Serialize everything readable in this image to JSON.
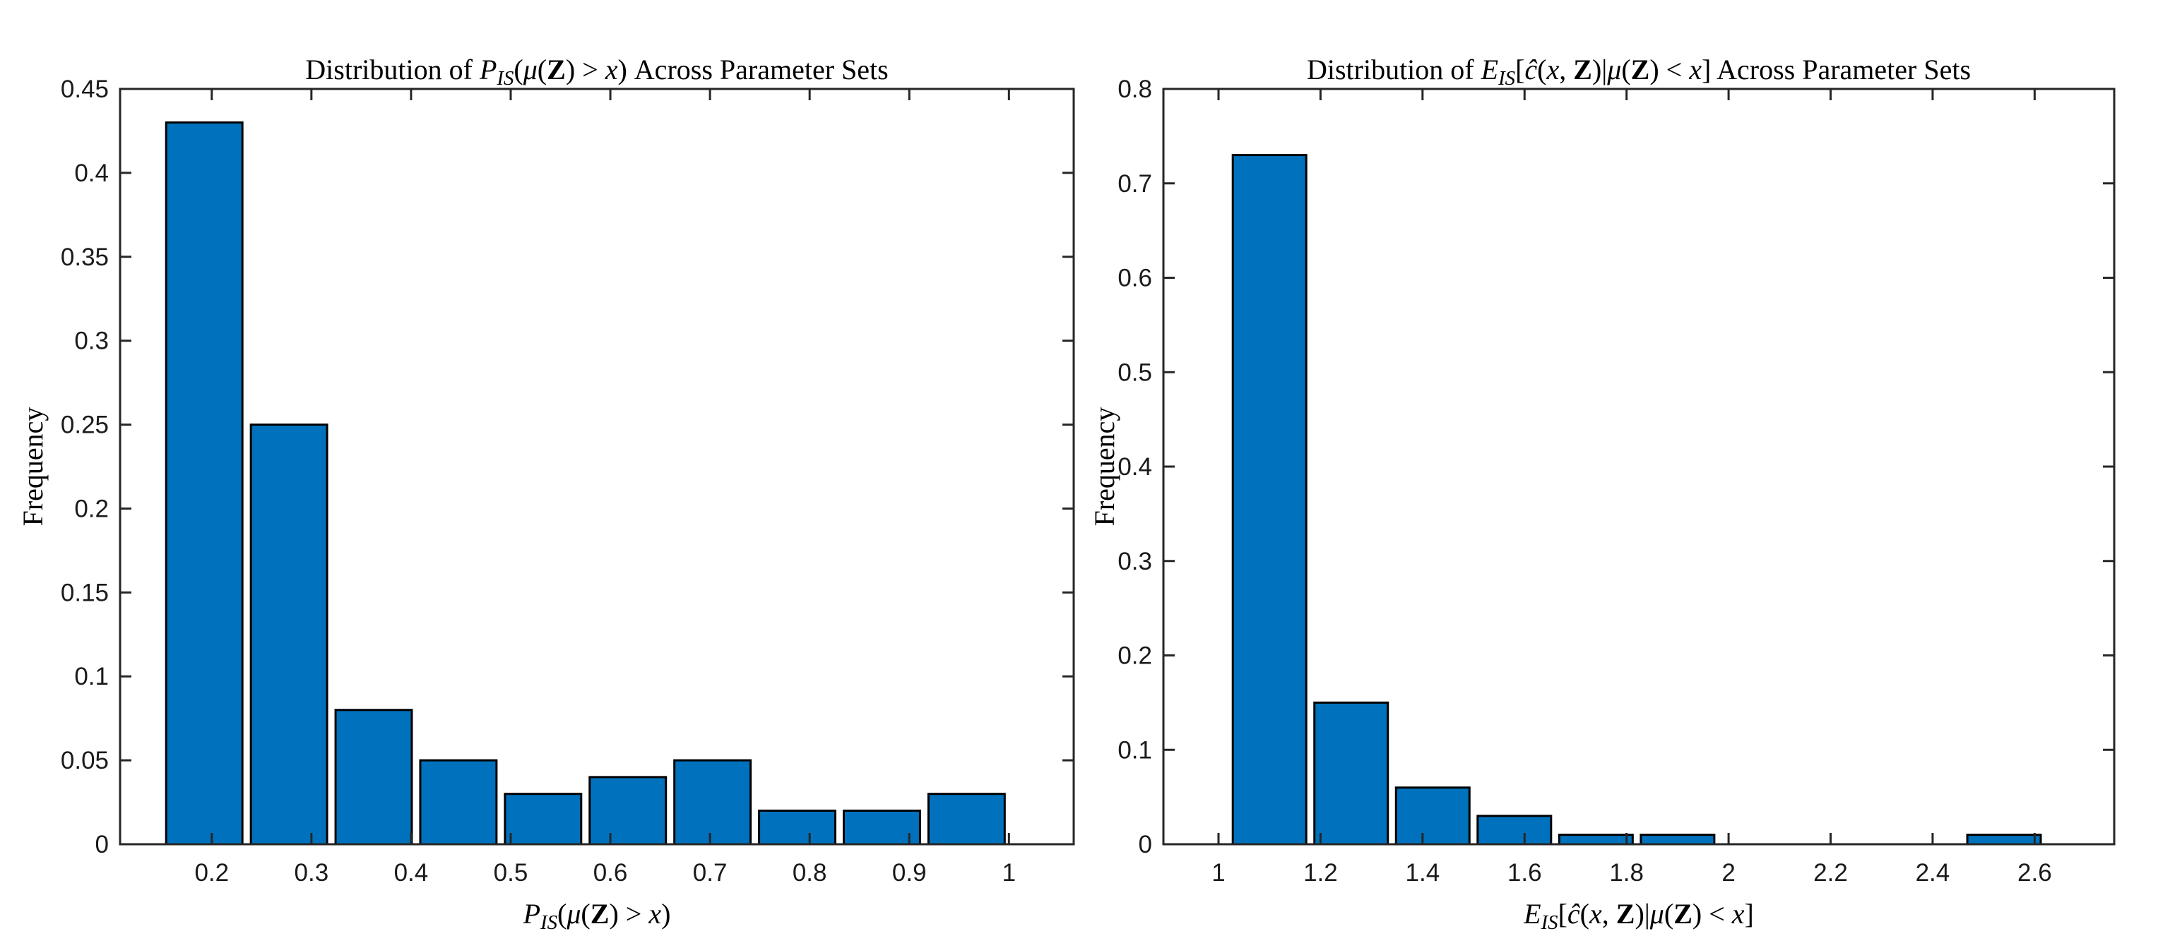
{
  "figure": {
    "background": "#ffffff",
    "kind": "matlab-style dual histogram figure"
  },
  "chart_data": [
    {
      "id": "pis-histogram",
      "type": "bar",
      "subtype": "histogram",
      "title": "Distribution of P_IS(μ(Z) > x) Across Parameter Sets",
      "title_segments": [
        {
          "t": "Distribution of ",
          "k": "rm"
        },
        {
          "t": "P",
          "k": "it"
        },
        {
          "t": "IS",
          "k": "itsub"
        },
        {
          "t": "(",
          "k": "rm"
        },
        {
          "t": "μ",
          "k": "it"
        },
        {
          "t": "(",
          "k": "rm"
        },
        {
          "t": "Z",
          "k": "bf"
        },
        {
          "t": ") > ",
          "k": "rm"
        },
        {
          "t": "x",
          "k": "it"
        },
        {
          "t": ")",
          "k": "rm"
        },
        {
          "t": " Across Parameter Sets",
          "k": "rm"
        }
      ],
      "xlabel": "P_IS(μ(Z) > x)",
      "xlabel_segments": [
        {
          "t": "P",
          "k": "it"
        },
        {
          "t": "IS",
          "k": "itsub"
        },
        {
          "t": "(",
          "k": "rm"
        },
        {
          "t": "μ",
          "k": "it"
        },
        {
          "t": "(",
          "k": "rm"
        },
        {
          "t": "Z",
          "k": "bf"
        },
        {
          "t": ") > ",
          "k": "rm"
        },
        {
          "t": "x",
          "k": "it"
        },
        {
          "t": ")",
          "k": "rm"
        }
      ],
      "ylabel": "Frequency",
      "bin_edges": [
        0.15,
        0.235,
        0.32,
        0.405,
        0.49,
        0.575,
        0.66,
        0.745,
        0.83,
        0.915,
        1.0
      ],
      "frequencies": [
        0.43,
        0.25,
        0.08,
        0.05,
        0.03,
        0.04,
        0.05,
        0.02,
        0.02,
        0.03
      ],
      "bar_width_fraction": 0.9,
      "xlim": [
        0.108,
        1.065
      ],
      "ylim": [
        0,
        0.45
      ],
      "xticks": {
        "values": [
          0.2,
          0.3,
          0.4,
          0.5,
          0.6,
          0.7,
          0.8,
          0.9,
          1
        ],
        "labels": [
          "0.2",
          "0.3",
          "0.4",
          "0.5",
          "0.6",
          "0.7",
          "0.8",
          "0.9",
          "1"
        ]
      },
      "yticks": {
        "values": [
          0,
          0.05,
          0.1,
          0.15,
          0.2,
          0.25,
          0.3,
          0.35,
          0.4,
          0.45
        ],
        "labels": [
          "0",
          "0.05",
          "0.1",
          "0.15",
          "0.2",
          "0.25",
          "0.3",
          "0.35",
          "0.4",
          "0.45"
        ]
      },
      "grid": false,
      "legend": null,
      "colors": {
        "bar_fill": "#0072BD",
        "bar_edge": "#000000",
        "axis": "#262626",
        "text": "#1a1a1a"
      }
    },
    {
      "id": "eis-histogram",
      "type": "bar",
      "subtype": "histogram",
      "title": "Distribution of E_IS[ĉ(x, Z)|μ(Z) < x] Across Parameter Sets",
      "title_segments": [
        {
          "t": "Distribution of ",
          "k": "rm"
        },
        {
          "t": "E",
          "k": "it"
        },
        {
          "t": "IS",
          "k": "itsub"
        },
        {
          "t": "[",
          "k": "rm"
        },
        {
          "t": "ĉ",
          "k": "it"
        },
        {
          "t": "(",
          "k": "rm"
        },
        {
          "t": "x",
          "k": "it"
        },
        {
          "t": ", ",
          "k": "rm"
        },
        {
          "t": "Z",
          "k": "bf"
        },
        {
          "t": ")|",
          "k": "rm"
        },
        {
          "t": "μ",
          "k": "it"
        },
        {
          "t": "(",
          "k": "rm"
        },
        {
          "t": "Z",
          "k": "bf"
        },
        {
          "t": ") < ",
          "k": "rm"
        },
        {
          "t": "x",
          "k": "it"
        },
        {
          "t": "]",
          "k": "rm"
        },
        {
          "t": " Across Parameter Sets",
          "k": "rm"
        }
      ],
      "xlabel": "E_IS[ĉ(x, Z)|μ(Z) < x]",
      "xlabel_segments": [
        {
          "t": "E",
          "k": "it"
        },
        {
          "t": "IS",
          "k": "itsub"
        },
        {
          "t": "[",
          "k": "rm"
        },
        {
          "t": "ĉ",
          "k": "it"
        },
        {
          "t": "(",
          "k": "rm"
        },
        {
          "t": "x",
          "k": "it"
        },
        {
          "t": ", ",
          "k": "rm"
        },
        {
          "t": "Z",
          "k": "bf"
        },
        {
          "t": ")|",
          "k": "rm"
        },
        {
          "t": "μ",
          "k": "it"
        },
        {
          "t": "(",
          "k": "rm"
        },
        {
          "t": "Z",
          "k": "bf"
        },
        {
          "t": ") < ",
          "k": "rm"
        },
        {
          "t": "x",
          "k": "it"
        },
        {
          "t": "]",
          "k": "rm"
        }
      ],
      "ylabel": "Frequency",
      "bin_edges": [
        1.02,
        1.18,
        1.34,
        1.5,
        1.66,
        1.82,
        1.98,
        2.14,
        2.3,
        2.46,
        2.62
      ],
      "frequencies": [
        0.73,
        0.15,
        0.06,
        0.03,
        0.01,
        0.01,
        0,
        0,
        0,
        0.01
      ],
      "bar_width_fraction": 0.9,
      "xlim": [
        0.892,
        2.756
      ],
      "ylim": [
        0,
        0.8
      ],
      "xticks": {
        "values": [
          1,
          1.2,
          1.4,
          1.6,
          1.8,
          2,
          2.2,
          2.4,
          2.6
        ],
        "labels": [
          "1",
          "1.2",
          "1.4",
          "1.6",
          "1.8",
          "2",
          "2.2",
          "2.4",
          "2.6"
        ]
      },
      "yticks": {
        "values": [
          0,
          0.1,
          0.2,
          0.3,
          0.4,
          0.5,
          0.6,
          0.7,
          0.8
        ],
        "labels": [
          "0",
          "0.1",
          "0.2",
          "0.3",
          "0.4",
          "0.5",
          "0.6",
          "0.7",
          "0.8"
        ]
      },
      "grid": false,
      "legend": null,
      "colors": {
        "bar_fill": "#0072BD",
        "bar_edge": "#000000",
        "axis": "#262626",
        "text": "#1a1a1a"
      }
    }
  ]
}
